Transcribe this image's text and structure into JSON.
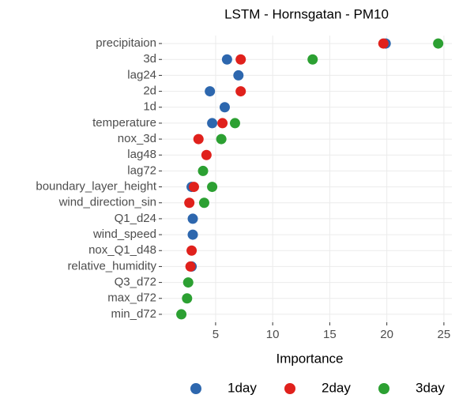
{
  "chart_data": {
    "type": "dot",
    "title": "LSTM - Hornsgatan - PM10",
    "x_label": "Importance",
    "categories": [
      "precipitaion",
      "3d",
      "lag24",
      "2d",
      "1d",
      "temperature",
      "nox_3d",
      "lag48",
      "lag72",
      "boundary_layer_height",
      "wind_direction_sin",
      "Q1_d24",
      "wind_speed",
      "nox_Q1_d48",
      "relative_humidity",
      "Q3_d72",
      "max_d72",
      "min_d72"
    ],
    "series": [
      {
        "name": "1day",
        "color": "#2d67ae",
        "values": [
          19.9,
          6.0,
          7.0,
          4.5,
          5.8,
          4.7,
          null,
          null,
          null,
          2.9,
          null,
          3.0,
          3.0,
          null,
          2.9,
          null,
          null,
          null
        ]
      },
      {
        "name": "2day",
        "color": "#e0211c",
        "values": [
          19.7,
          7.2,
          null,
          7.2,
          null,
          5.6,
          3.5,
          4.2,
          null,
          3.1,
          2.7,
          null,
          null,
          2.9,
          2.8,
          null,
          null,
          null
        ]
      },
      {
        "name": "3day",
        "color": "#2ca032",
        "values": [
          24.5,
          13.5,
          null,
          null,
          null,
          6.7,
          5.5,
          null,
          3.9,
          4.7,
          4.0,
          null,
          null,
          null,
          null,
          2.6,
          2.5,
          2.0
        ]
      }
    ],
    "xlim": [
      0.3,
      25.7
    ],
    "xticks": [
      5,
      10,
      15,
      20,
      25
    ],
    "grid": true,
    "legend": "bottom"
  }
}
